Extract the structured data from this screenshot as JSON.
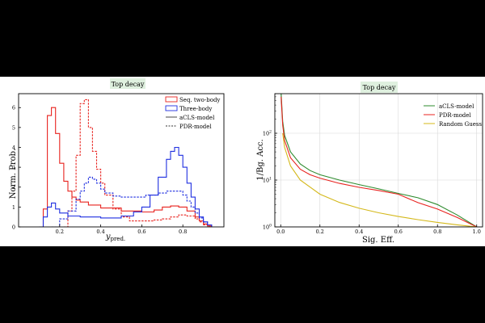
{
  "chart_data": [
    {
      "type": "line",
      "drawstyle": "steps",
      "title": "Top decay",
      "xlabel": "y_pred.",
      "xlabel_main": "y",
      "xlabel_sub": "pred.",
      "ylabel": "Norm. Prob.",
      "xlim": [
        0.0,
        1.0
      ],
      "ylim": [
        0,
        6.7
      ],
      "xticks": [
        0.2,
        0.4,
        0.6,
        0.8
      ],
      "xtick_labels": [
        "0.2",
        "0.4",
        "0.6",
        "0.8"
      ],
      "yticks": [
        0,
        1,
        2,
        3,
        4,
        5,
        6
      ],
      "ytick_labels": [
        "0",
        "1",
        "2",
        "3",
        "4",
        "5",
        "6"
      ],
      "legend": [
        "Seq. two-body",
        "Three-body",
        "aCLS-model",
        "PDR-model"
      ],
      "legend_position": "top-right",
      "colors": {
        "seq": "#e8231f",
        "three": "#1f2fe0"
      },
      "series": [
        {
          "name": "Seq. two-body (aCLS-model)",
          "color": "red",
          "linestyle": "solid",
          "x": [
            0.1,
            0.12,
            0.14,
            0.16,
            0.18,
            0.2,
            0.22,
            0.24,
            0.26,
            0.28,
            0.3,
            0.34,
            0.4,
            0.5,
            0.6,
            0.66,
            0.7,
            0.74,
            0.78,
            0.82,
            0.86,
            0.88,
            0.9,
            0.92,
            0.94
          ],
          "y": [
            0.0,
            0.9,
            5.6,
            6.0,
            4.7,
            3.2,
            2.3,
            1.8,
            1.5,
            1.35,
            1.25,
            1.1,
            0.95,
            0.8,
            0.75,
            0.85,
            1.0,
            1.05,
            1.0,
            0.8,
            0.5,
            0.3,
            0.15,
            0.05,
            0.0
          ]
        },
        {
          "name": "Seq. two-body (PDR-model)",
          "color": "red",
          "linestyle": "dashed",
          "x": [
            0.22,
            0.24,
            0.26,
            0.28,
            0.3,
            0.32,
            0.34,
            0.36,
            0.38,
            0.4,
            0.42,
            0.46,
            0.5,
            0.54,
            0.6,
            0.66,
            0.7,
            0.74,
            0.78,
            0.82,
            0.86,
            0.88,
            0.9,
            0.92,
            0.94
          ],
          "y": [
            0.0,
            0.8,
            1.8,
            3.6,
            6.2,
            6.4,
            5.0,
            3.8,
            2.9,
            2.2,
            1.6,
            0.9,
            0.5,
            0.3,
            0.3,
            0.35,
            0.4,
            0.5,
            0.6,
            0.55,
            0.4,
            0.25,
            0.1,
            0.05,
            0.0
          ]
        },
        {
          "name": "Three-body (aCLS-model)",
          "color": "blue",
          "linestyle": "solid",
          "x": [
            0.1,
            0.12,
            0.14,
            0.16,
            0.18,
            0.2,
            0.24,
            0.3,
            0.4,
            0.5,
            0.56,
            0.6,
            0.64,
            0.68,
            0.72,
            0.74,
            0.76,
            0.78,
            0.8,
            0.82,
            0.84,
            0.86,
            0.88,
            0.9,
            0.92,
            0.94
          ],
          "y": [
            0.0,
            0.5,
            1.0,
            1.2,
            0.9,
            0.7,
            0.55,
            0.5,
            0.45,
            0.55,
            0.75,
            1.0,
            1.6,
            2.5,
            3.4,
            3.8,
            4.0,
            3.6,
            3.0,
            2.2,
            1.5,
            0.9,
            0.5,
            0.25,
            0.1,
            0.0
          ]
        },
        {
          "name": "Three-body (PDR-model)",
          "color": "blue",
          "linestyle": "dashed",
          "x": [
            0.16,
            0.2,
            0.24,
            0.28,
            0.3,
            0.32,
            0.34,
            0.36,
            0.38,
            0.4,
            0.42,
            0.46,
            0.5,
            0.56,
            0.62,
            0.68,
            0.72,
            0.76,
            0.8,
            0.82,
            0.84,
            0.86,
            0.88,
            0.9,
            0.92,
            0.94
          ],
          "y": [
            0.0,
            0.4,
            0.8,
            1.4,
            1.8,
            2.2,
            2.5,
            2.4,
            2.2,
            1.9,
            1.7,
            1.55,
            1.5,
            1.5,
            1.6,
            1.7,
            1.8,
            1.8,
            1.6,
            1.3,
            1.0,
            0.7,
            0.45,
            0.25,
            0.1,
            0.0
          ]
        }
      ]
    },
    {
      "type": "line",
      "title": "Top decay",
      "xlabel": "Sig. Eff.",
      "ylabel": "1/Bg. Acc.",
      "yscale": "log",
      "xlim": [
        -0.03,
        1.03
      ],
      "ylim": [
        1,
        700
      ],
      "grid": true,
      "xticks": [
        0.0,
        0.2,
        0.4,
        0.6,
        0.8,
        1.0
      ],
      "xtick_labels": [
        "0.0",
        "0.2",
        "0.4",
        "0.6",
        "0.8",
        "1.0"
      ],
      "yticks": [
        1,
        10,
        100
      ],
      "ytick_labels": [
        "10^0",
        "10^1",
        "10^2"
      ],
      "ytick_base": "10",
      "ytick_exps": [
        "0",
        "1",
        "2"
      ],
      "legend": [
        "aCLS-model",
        "PDR-model",
        "Random Guess"
      ],
      "legend_position": "top-right",
      "series": [
        {
          "name": "aCLS-model",
          "color": "#2e8b2e",
          "x": [
            0.002,
            0.01,
            0.02,
            0.05,
            0.1,
            0.15,
            0.2,
            0.3,
            0.4,
            0.5,
            0.6,
            0.7,
            0.8,
            0.9,
            1.0
          ],
          "y": [
            700,
            180,
            90,
            40,
            22,
            16,
            13,
            10,
            8,
            6.5,
            5.2,
            4.2,
            3.0,
            1.8,
            1.0
          ]
        },
        {
          "name": "PDR-model",
          "color": "#e8231f",
          "x": [
            0.002,
            0.01,
            0.02,
            0.05,
            0.1,
            0.15,
            0.2,
            0.3,
            0.4,
            0.5,
            0.6,
            0.7,
            0.8,
            0.9,
            1.0
          ],
          "y": [
            600,
            150,
            70,
            30,
            17,
            13,
            11,
            8.5,
            7,
            6,
            5,
            3.3,
            2.4,
            1.6,
            1.0
          ]
        },
        {
          "name": "Random Guess",
          "color": "#d4b81a",
          "x": [
            0.01,
            0.02,
            0.05,
            0.1,
            0.2,
            0.3,
            0.4,
            0.5,
            0.6,
            0.7,
            0.8,
            0.9,
            1.0
          ],
          "y": [
            100,
            50,
            20,
            10,
            5,
            3.33,
            2.5,
            2,
            1.67,
            1.43,
            1.25,
            1.11,
            1.0
          ]
        }
      ]
    }
  ]
}
